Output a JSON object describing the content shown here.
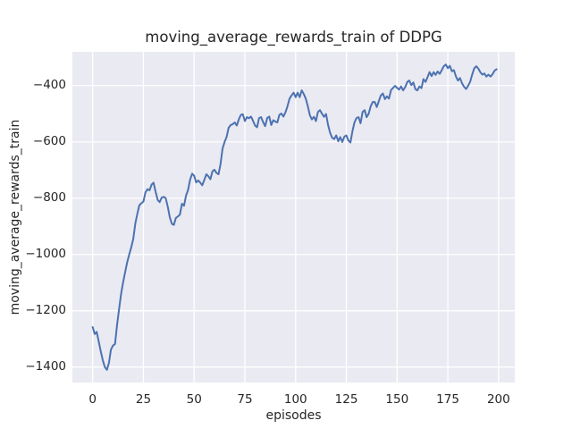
{
  "figure": {
    "background": "#ffffff"
  },
  "chart_data": {
    "type": "line",
    "title": "moving_average_rewards_train of DDPG",
    "xlabel": "episodes",
    "ylabel": "moving_average_rewards_train",
    "series": [
      {
        "name": "moving_average_rewards_train",
        "color": "#4c72b0"
      }
    ],
    "plot_bg": "#eaeaf2",
    "grid_color": "#ffffff",
    "text_color": "#262626",
    "grid": true,
    "legend_position": "none",
    "xlim": [
      -10,
      208
    ],
    "ylim": [
      -1455,
      -280
    ],
    "xticks": [
      0,
      25,
      50,
      75,
      100,
      125,
      150,
      175,
      200
    ],
    "xtick_labels": [
      "0",
      "25",
      "50",
      "75",
      "100",
      "125",
      "150",
      "175",
      "200"
    ],
    "yticks": [
      -400,
      -600,
      -800,
      -1000,
      -1200,
      -1400
    ],
    "ytick_labels": [
      "−400",
      "−600",
      "−800",
      "−1000",
      "−1200",
      "−1400"
    ],
    "x_start": 0,
    "x_step": 1,
    "values": [
      -1258,
      -1283,
      -1275,
      -1310,
      -1345,
      -1377,
      -1400,
      -1410,
      -1385,
      -1338,
      -1324,
      -1318,
      -1250,
      -1195,
      -1140,
      -1098,
      -1063,
      -1028,
      -1000,
      -975,
      -945,
      -890,
      -855,
      -825,
      -818,
      -812,
      -780,
      -768,
      -772,
      -752,
      -745,
      -777,
      -806,
      -814,
      -798,
      -795,
      -800,
      -830,
      -868,
      -891,
      -895,
      -870,
      -865,
      -858,
      -820,
      -827,
      -790,
      -771,
      -734,
      -713,
      -720,
      -744,
      -737,
      -745,
      -754,
      -735,
      -715,
      -722,
      -733,
      -705,
      -699,
      -710,
      -715,
      -678,
      -624,
      -600,
      -582,
      -550,
      -540,
      -537,
      -531,
      -542,
      -520,
      -504,
      -502,
      -526,
      -512,
      -516,
      -510,
      -525,
      -542,
      -548,
      -515,
      -512,
      -530,
      -544,
      -515,
      -510,
      -540,
      -523,
      -528,
      -531,
      -504,
      -499,
      -510,
      -495,
      -473,
      -446,
      -435,
      -425,
      -441,
      -425,
      -441,
      -417,
      -430,
      -446,
      -473,
      -505,
      -520,
      -511,
      -526,
      -494,
      -487,
      -500,
      -511,
      -501,
      -540,
      -568,
      -585,
      -590,
      -577,
      -598,
      -583,
      -600,
      -581,
      -577,
      -595,
      -602,
      -563,
      -531,
      -515,
      -512,
      -534,
      -494,
      -487,
      -512,
      -500,
      -473,
      -458,
      -458,
      -476,
      -455,
      -435,
      -428,
      -448,
      -438,
      -446,
      -416,
      -408,
      -401,
      -408,
      -414,
      -403,
      -417,
      -405,
      -387,
      -382,
      -398,
      -389,
      -412,
      -417,
      -403,
      -409,
      -377,
      -387,
      -370,
      -352,
      -366,
      -352,
      -362,
      -350,
      -358,
      -345,
      -331,
      -325,
      -338,
      -330,
      -349,
      -345,
      -368,
      -382,
      -373,
      -392,
      -404,
      -412,
      -400,
      -387,
      -361,
      -339,
      -331,
      -339,
      -352,
      -361,
      -357,
      -368,
      -361,
      -368,
      -360,
      -347,
      -342
    ]
  }
}
